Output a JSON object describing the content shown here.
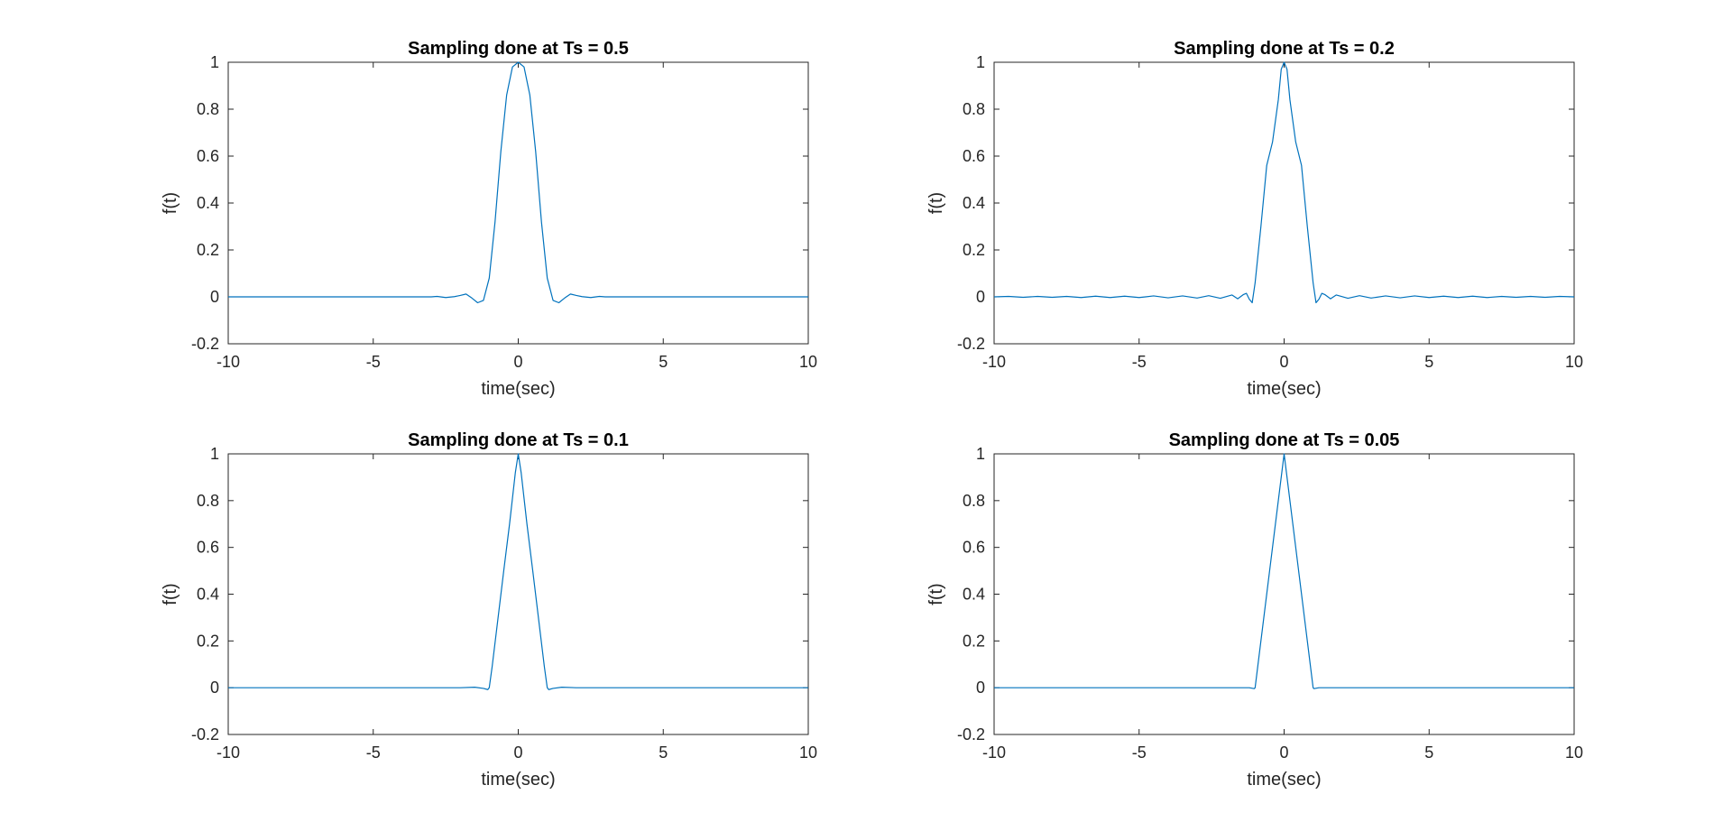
{
  "chart_data": [
    {
      "type": "line",
      "title": "Sampling done at Ts = 0.5",
      "xlabel": "time(sec)",
      "ylabel": "f(t)",
      "xlim": [
        -10,
        10
      ],
      "ylim": [
        -0.2,
        1
      ],
      "xticks": [
        -10,
        -5,
        0,
        5,
        10
      ],
      "yticks": [
        -0.2,
        0,
        0.2,
        0.4,
        0.6,
        0.8,
        1
      ],
      "xtick_labels": [
        "-10",
        "-5",
        "0",
        "5",
        "10"
      ],
      "ytick_labels": [
        "-0.2",
        "0",
        "0.2",
        "0.4",
        "0.6",
        "0.8",
        "1"
      ],
      "grid": false,
      "color": "#0072BD",
      "series": [
        {
          "x": [
            -10,
            -5,
            -4,
            -3,
            -2.8,
            -2.5,
            -2.2,
            -2,
            -1.8,
            -1.6,
            -1.4,
            -1.2,
            -1,
            -0.8,
            -0.6,
            -0.4,
            -0.2,
            0,
            0.2,
            0.4,
            0.6,
            0.8,
            1,
            1.2,
            1.4,
            1.6,
            1.8,
            2,
            2.2,
            2.5,
            2.8,
            3,
            4,
            5,
            10
          ],
          "y": [
            0,
            0,
            0,
            0,
            0.002,
            -0.003,
            0.001,
            0.006,
            0.012,
            -0.005,
            -0.025,
            -0.015,
            0.08,
            0.32,
            0.62,
            0.86,
            0.98,
            1,
            0.98,
            0.86,
            0.62,
            0.32,
            0.08,
            -0.015,
            -0.025,
            -0.005,
            0.012,
            0.006,
            0.001,
            -0.003,
            0.002,
            0,
            0,
            0,
            0
          ]
        }
      ]
    },
    {
      "type": "line",
      "title": "Sampling done at Ts = 0.2",
      "xlabel": "time(sec)",
      "ylabel": "f(t)",
      "xlim": [
        -10,
        10
      ],
      "ylim": [
        -0.2,
        1
      ],
      "xticks": [
        -10,
        -5,
        0,
        5,
        10
      ],
      "yticks": [
        -0.2,
        0,
        0.2,
        0.4,
        0.6,
        0.8,
        1
      ],
      "xtick_labels": [
        "-10",
        "-5",
        "0",
        "5",
        "10"
      ],
      "ytick_labels": [
        "-0.2",
        "0",
        "0.2",
        "0.4",
        "0.6",
        "0.8",
        "1"
      ],
      "grid": false,
      "color": "#0072BD",
      "series": [
        {
          "x": [
            -10,
            -9.5,
            -9,
            -8.5,
            -8,
            -7.5,
            -7,
            -6.5,
            -6,
            -5.5,
            -5,
            -4.5,
            -4,
            -3.5,
            -3,
            -2.6,
            -2.2,
            -1.8,
            -1.6,
            -1.4,
            -1.3,
            -1.2,
            -1.1,
            -1,
            -0.8,
            -0.6,
            -0.4,
            -0.2,
            -0.1,
            0,
            0.1,
            0.2,
            0.4,
            0.6,
            0.8,
            1,
            1.1,
            1.2,
            1.3,
            1.4,
            1.6,
            1.8,
            2.2,
            2.6,
            3,
            3.5,
            4,
            4.5,
            5,
            5.5,
            6,
            6.5,
            7,
            7.5,
            8,
            8.5,
            9,
            9.5,
            10
          ],
          "y": [
            0,
            0.002,
            -0.002,
            0.002,
            -0.002,
            0.002,
            -0.003,
            0.003,
            -0.003,
            0.003,
            -0.003,
            0.004,
            -0.004,
            0.004,
            -0.005,
            0.005,
            -0.006,
            0.008,
            -0.008,
            0.01,
            0.015,
            -0.01,
            -0.025,
            0.06,
            0.3,
            0.56,
            0.66,
            0.84,
            0.97,
            1,
            0.97,
            0.84,
            0.66,
            0.56,
            0.3,
            0.06,
            -0.025,
            -0.01,
            0.015,
            0.01,
            -0.008,
            0.008,
            -0.006,
            0.005,
            -0.005,
            0.004,
            -0.004,
            0.004,
            -0.003,
            0.003,
            -0.003,
            0.003,
            -0.003,
            0.002,
            -0.002,
            0.002,
            -0.002,
            0.002,
            0
          ]
        }
      ]
    },
    {
      "type": "line",
      "title": "Sampling done at Ts = 0.1",
      "xlabel": "time(sec)",
      "ylabel": "f(t)",
      "xlim": [
        -10,
        10
      ],
      "ylim": [
        -0.2,
        1
      ],
      "xticks": [
        -10,
        -5,
        0,
        5,
        10
      ],
      "yticks": [
        -0.2,
        0,
        0.2,
        0.4,
        0.6,
        0.8,
        1
      ],
      "xtick_labels": [
        "-10",
        "-5",
        "0",
        "5",
        "10"
      ],
      "ytick_labels": [
        "-0.2",
        "0",
        "0.2",
        "0.4",
        "0.6",
        "0.8",
        "1"
      ],
      "grid": false,
      "color": "#0072BD",
      "series": [
        {
          "x": [
            -10,
            -5,
            -2,
            -1.5,
            -1.2,
            -1.05,
            -1,
            -0.9,
            -0.5,
            -0.3,
            -0.1,
            0,
            0.1,
            0.3,
            0.5,
            0.9,
            1,
            1.05,
            1.2,
            1.5,
            2,
            5,
            10
          ],
          "y": [
            0,
            0,
            0,
            0.002,
            -0.003,
            -0.008,
            0.0,
            0.09,
            0.5,
            0.7,
            0.92,
            1,
            0.92,
            0.7,
            0.5,
            0.09,
            0.0,
            -0.008,
            -0.003,
            0.002,
            0,
            0,
            0
          ]
        }
      ]
    },
    {
      "type": "line",
      "title": "Sampling done at Ts = 0.05",
      "xlabel": "time(sec)",
      "ylabel": "f(t)",
      "xlim": [
        -10,
        10
      ],
      "ylim": [
        -0.2,
        1
      ],
      "xticks": [
        -10,
        -5,
        0,
        5,
        10
      ],
      "yticks": [
        -0.2,
        0,
        0.2,
        0.4,
        0.6,
        0.8,
        1
      ],
      "xtick_labels": [
        "-10",
        "-5",
        "0",
        "5",
        "10"
      ],
      "ytick_labels": [
        "-0.2",
        "0",
        "0.2",
        "0.4",
        "0.6",
        "0.8",
        "1"
      ],
      "grid": false,
      "color": "#0072BD",
      "series": [
        {
          "x": [
            -10,
            -5,
            -1.2,
            -1.03,
            -1,
            -0.5,
            0,
            0.5,
            1,
            1.03,
            1.2,
            5,
            10
          ],
          "y": [
            0,
            0,
            0,
            -0.004,
            0,
            0.5,
            1,
            0.5,
            0,
            -0.004,
            0,
            0,
            0
          ]
        }
      ]
    }
  ]
}
